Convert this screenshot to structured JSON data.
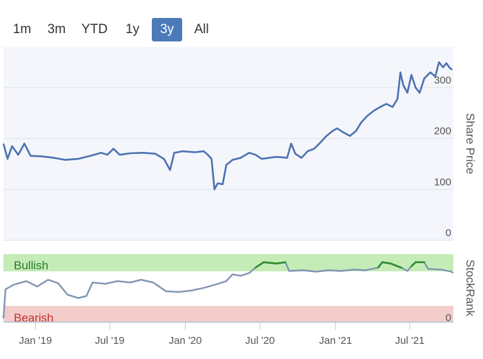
{
  "range_selector": {
    "buttons": [
      "1m",
      "3m",
      "YTD",
      "1y",
      "3y",
      "All"
    ],
    "active": "3y"
  },
  "colors": {
    "price_line": "#4a72b0",
    "rank_line": "#8194b2",
    "rank_bullish_line": "#2e8b2e",
    "bullish_band": "#c5ecb7",
    "bearish_band": "#f2cdc9",
    "bullish_text": "#2a7a2a",
    "bearish_text": "#c43030",
    "active_button": "#4a7ab8"
  },
  "chart_data": [
    {
      "type": "line",
      "name": "Share Price",
      "ylabel": "Share Price",
      "ylim": [
        0,
        380
      ],
      "yticks": [
        0,
        100,
        200,
        300
      ],
      "x_range": [
        "2018-10-15",
        "2021-10-15"
      ],
      "xticks": [
        {
          "date": "2019-01-01",
          "label": "Jan '19"
        },
        {
          "date": "2019-07-01",
          "label": "Jul '19"
        },
        {
          "date": "2020-01-01",
          "label": "Jan '20"
        },
        {
          "date": "2020-07-01",
          "label": "Jul '20"
        },
        {
          "date": "2021-01-01",
          "label": "Jan '21"
        },
        {
          "date": "2021-07-01",
          "label": "Jul '21"
        }
      ],
      "series": [
        {
          "name": "Share Price",
          "points": [
            [
              "2018-10-15",
              190
            ],
            [
              "2018-10-25",
              160
            ],
            [
              "2018-11-05",
              185
            ],
            [
              "2018-11-20",
              168
            ],
            [
              "2018-12-05",
              190
            ],
            [
              "2018-12-20",
              166
            ],
            [
              "2019-01-15",
              165
            ],
            [
              "2019-02-15",
              162
            ],
            [
              "2019-03-15",
              158
            ],
            [
              "2019-04-15",
              160
            ],
            [
              "2019-05-15",
              166
            ],
            [
              "2019-06-10",
              172
            ],
            [
              "2019-06-25",
              168
            ],
            [
              "2019-07-10",
              180
            ],
            [
              "2019-07-25",
              168
            ],
            [
              "2019-08-20",
              171
            ],
            [
              "2019-09-20",
              172
            ],
            [
              "2019-10-20",
              170
            ],
            [
              "2019-11-10",
              160
            ],
            [
              "2019-11-25",
              138
            ],
            [
              "2019-12-05",
              172
            ],
            [
              "2019-12-25",
              175
            ],
            [
              "2020-01-25",
              173
            ],
            [
              "2020-02-15",
              175
            ],
            [
              "2020-02-25",
              168
            ],
            [
              "2020-03-05",
              160
            ],
            [
              "2020-03-12",
              100
            ],
            [
              "2020-03-20",
              112
            ],
            [
              "2020-04-01",
              110
            ],
            [
              "2020-04-10",
              148
            ],
            [
              "2020-04-25",
              158
            ],
            [
              "2020-05-15",
              162
            ],
            [
              "2020-06-05",
              172
            ],
            [
              "2020-06-20",
              168
            ],
            [
              "2020-07-05",
              160
            ],
            [
              "2020-08-10",
              164
            ],
            [
              "2020-09-05",
              162
            ],
            [
              "2020-09-15",
              190
            ],
            [
              "2020-09-25",
              170
            ],
            [
              "2020-10-10",
              162
            ],
            [
              "2020-10-25",
              175
            ],
            [
              "2020-11-10",
              180
            ],
            [
              "2020-11-25",
              192
            ],
            [
              "2020-12-10",
              205
            ],
            [
              "2020-12-25",
              215
            ],
            [
              "2021-01-05",
              220
            ],
            [
              "2021-01-20",
              212
            ],
            [
              "2021-02-05",
              205
            ],
            [
              "2021-02-20",
              215
            ],
            [
              "2021-03-05",
              232
            ],
            [
              "2021-03-20",
              245
            ],
            [
              "2021-04-05",
              255
            ],
            [
              "2021-04-20",
              262
            ],
            [
              "2021-05-05",
              268
            ],
            [
              "2021-05-20",
              262
            ],
            [
              "2021-06-01",
              278
            ],
            [
              "2021-06-08",
              330
            ],
            [
              "2021-06-15",
              305
            ],
            [
              "2021-06-25",
              290
            ],
            [
              "2021-07-05",
              325
            ],
            [
              "2021-07-15",
              300
            ],
            [
              "2021-07-25",
              290
            ],
            [
              "2021-08-05",
              318
            ],
            [
              "2021-08-20",
              330
            ],
            [
              "2021-09-01",
              322
            ],
            [
              "2021-09-10",
              350
            ],
            [
              "2021-09-20",
              340
            ],
            [
              "2021-09-28",
              348
            ],
            [
              "2021-10-05",
              340
            ],
            [
              "2021-10-12",
              335
            ]
          ]
        }
      ]
    },
    {
      "type": "line",
      "name": "StockRank",
      "ylabel": "StockRank",
      "ylim": [
        0,
        100
      ],
      "yticks": [
        0
      ],
      "bands": [
        {
          "label": "Bullish",
          "from": 80,
          "to": 100
        },
        {
          "label": "Bearish",
          "from": 0,
          "to": 20
        }
      ],
      "series": [
        {
          "name": "StockRank",
          "points": [
            [
              "2018-10-15",
              5
            ],
            [
              "2018-10-20",
              48
            ],
            [
              "2018-11-10",
              55
            ],
            [
              "2018-12-10",
              60
            ],
            [
              "2019-01-05",
              52
            ],
            [
              "2019-02-01",
              62
            ],
            [
              "2019-02-25",
              57
            ],
            [
              "2019-03-20",
              40
            ],
            [
              "2019-04-15",
              35
            ],
            [
              "2019-05-05",
              38
            ],
            [
              "2019-05-20",
              58
            ],
            [
              "2019-06-20",
              56
            ],
            [
              "2019-07-20",
              60
            ],
            [
              "2019-08-20",
              58
            ],
            [
              "2019-09-15",
              62
            ],
            [
              "2019-10-15",
              58
            ],
            [
              "2019-11-15",
              45
            ],
            [
              "2019-12-15",
              44
            ],
            [
              "2020-01-15",
              46
            ],
            [
              "2020-02-15",
              50
            ],
            [
              "2020-03-15",
              55
            ],
            [
              "2020-04-10",
              60
            ],
            [
              "2020-04-25",
              70
            ],
            [
              "2020-05-15",
              68
            ],
            [
              "2020-06-05",
              72
            ],
            [
              "2020-06-20",
              80
            ],
            [
              "2020-07-10",
              88
            ],
            [
              "2020-08-10",
              86
            ],
            [
              "2020-09-01",
              88
            ],
            [
              "2020-09-10",
              75
            ],
            [
              "2020-10-15",
              76
            ],
            [
              "2020-11-15",
              74
            ],
            [
              "2020-12-15",
              76
            ],
            [
              "2021-01-15",
              75
            ],
            [
              "2021-02-15",
              77
            ],
            [
              "2021-03-15",
              76
            ],
            [
              "2021-04-15",
              80
            ],
            [
              "2021-04-25",
              88
            ],
            [
              "2021-05-15",
              86
            ],
            [
              "2021-06-10",
              80
            ],
            [
              "2021-06-25",
              75
            ],
            [
              "2021-07-05",
              82
            ],
            [
              "2021-07-15",
              88
            ],
            [
              "2021-08-05",
              88
            ],
            [
              "2021-08-15",
              78
            ],
            [
              "2021-09-15",
              77
            ],
            [
              "2021-10-10",
              74
            ],
            [
              "2021-10-15",
              72
            ]
          ]
        }
      ]
    }
  ]
}
